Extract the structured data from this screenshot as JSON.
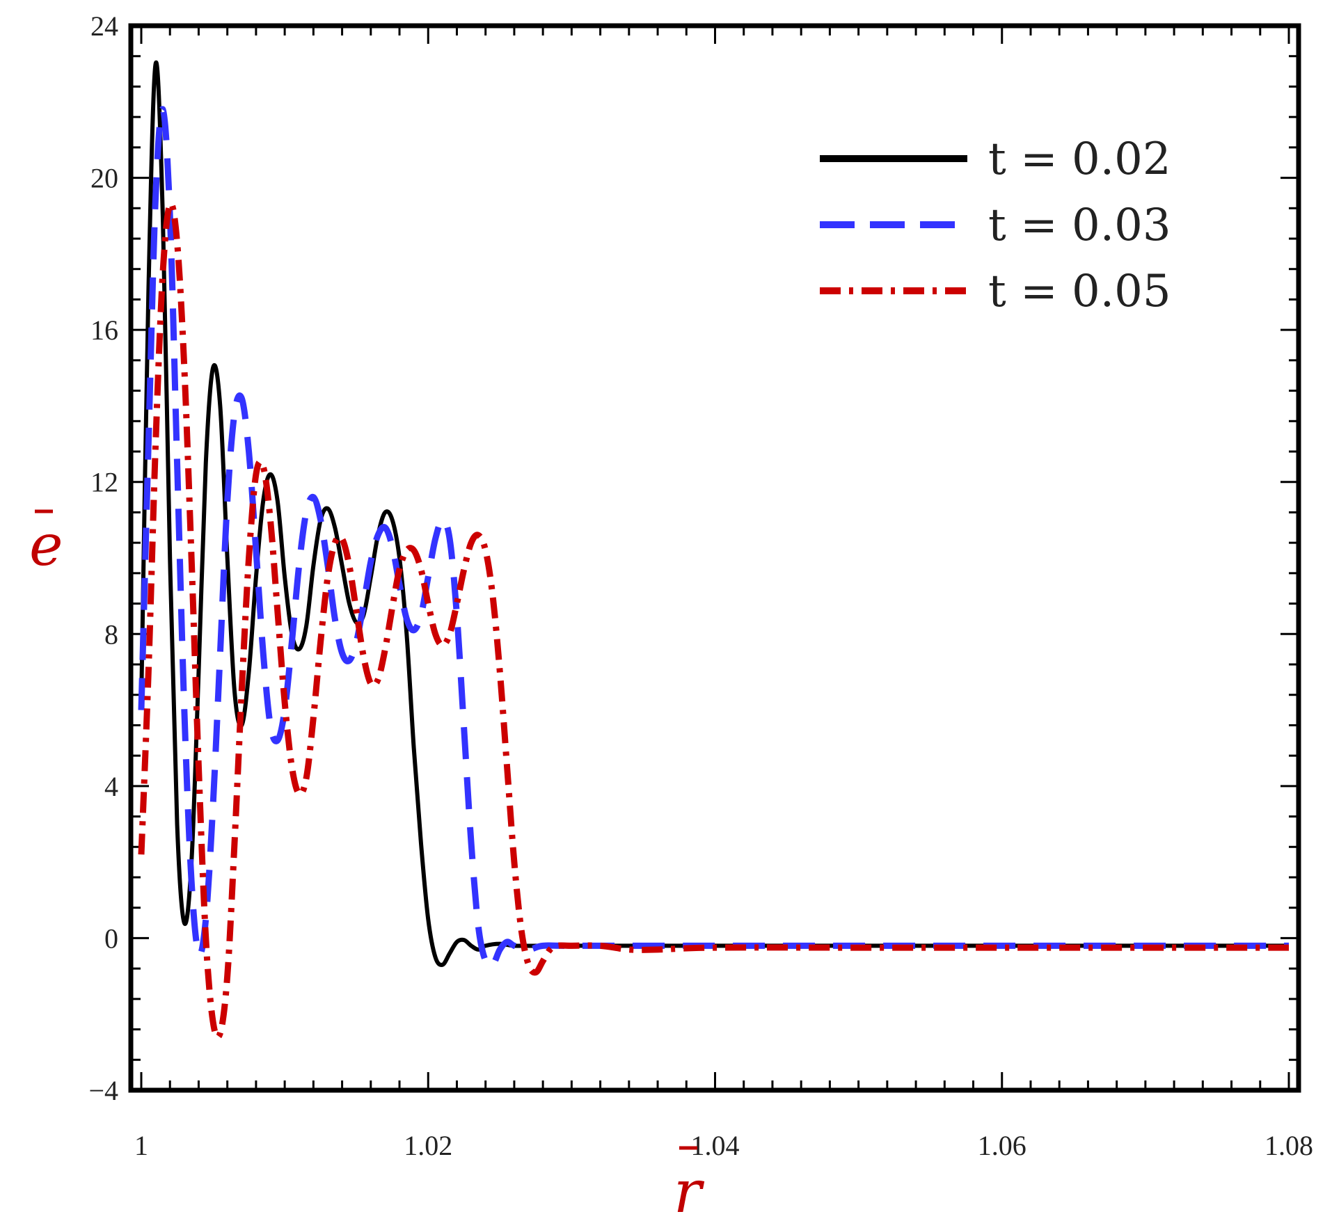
{
  "chart_data": {
    "type": "line",
    "xlabel": "r",
    "ylabel": "e",
    "xlim": [
      1,
      1.08
    ],
    "ylim": [
      -4,
      24
    ],
    "x_ticks": [
      "1",
      "1.02",
      "1.04",
      "1.06",
      "1.08"
    ],
    "x_tick_values": [
      1,
      1.02,
      1.04,
      1.06,
      1.08
    ],
    "y_ticks": [
      "−4",
      "0",
      "4",
      "8",
      "12",
      "16",
      "20",
      "24"
    ],
    "y_tick_values": [
      -4,
      0,
      4,
      8,
      12,
      16,
      20,
      24
    ],
    "grid": false,
    "legend_position": "top-right",
    "axis_label_color": "#c00000",
    "series": [
      {
        "name": "t = 0.02",
        "color": "#000000",
        "style": "solid",
        "points": [
          [
            1.0,
            6.2
          ],
          [
            1.0005,
            17.0
          ],
          [
            1.001,
            23.0
          ],
          [
            1.0015,
            19.0
          ],
          [
            1.002,
            10.0
          ],
          [
            1.0025,
            3.0
          ],
          [
            1.003,
            0.4
          ],
          [
            1.0035,
            2.0
          ],
          [
            1.004,
            7.0
          ],
          [
            1.0045,
            12.5
          ],
          [
            1.005,
            15.0
          ],
          [
            1.0055,
            14.0
          ],
          [
            1.006,
            10.0
          ],
          [
            1.0065,
            6.5
          ],
          [
            1.007,
            5.6
          ],
          [
            1.0075,
            7.0
          ],
          [
            1.008,
            9.5
          ],
          [
            1.0085,
            11.5
          ],
          [
            1.009,
            12.2
          ],
          [
            1.0095,
            11.5
          ],
          [
            1.01,
            9.5
          ],
          [
            1.0105,
            8.0
          ],
          [
            1.011,
            7.6
          ],
          [
            1.0115,
            8.2
          ],
          [
            1.012,
            9.8
          ],
          [
            1.0125,
            11.0
          ],
          [
            1.013,
            11.3
          ],
          [
            1.0135,
            10.8
          ],
          [
            1.014,
            9.8
          ],
          [
            1.0145,
            8.8
          ],
          [
            1.015,
            8.3
          ],
          [
            1.0155,
            8.5
          ],
          [
            1.016,
            9.5
          ],
          [
            1.0165,
            10.6
          ],
          [
            1.017,
            11.2
          ],
          [
            1.0175,
            11.0
          ],
          [
            1.018,
            10.0
          ],
          [
            1.0185,
            8.0
          ],
          [
            1.019,
            5.0
          ],
          [
            1.0195,
            2.5
          ],
          [
            1.02,
            0.5
          ],
          [
            1.0205,
            -0.5
          ],
          [
            1.021,
            -0.7
          ],
          [
            1.0215,
            -0.4
          ],
          [
            1.022,
            -0.1
          ],
          [
            1.0225,
            -0.05
          ],
          [
            1.023,
            -0.2
          ],
          [
            1.0235,
            -0.3
          ],
          [
            1.024,
            -0.2
          ],
          [
            1.025,
            -0.15
          ],
          [
            1.026,
            -0.2
          ],
          [
            1.028,
            -0.2
          ],
          [
            1.03,
            -0.2
          ],
          [
            1.04,
            -0.2
          ],
          [
            1.05,
            -0.2
          ],
          [
            1.06,
            -0.2
          ],
          [
            1.07,
            -0.2
          ],
          [
            1.08,
            -0.2
          ]
        ]
      },
      {
        "name": "t = 0.03",
        "color": "#3333ff",
        "style": "dashed",
        "points": [
          [
            1.0,
            6.0
          ],
          [
            1.0005,
            13.0
          ],
          [
            1.001,
            19.5
          ],
          [
            1.0015,
            21.8
          ],
          [
            1.002,
            19.0
          ],
          [
            1.0025,
            12.5
          ],
          [
            1.003,
            6.0
          ],
          [
            1.0035,
            1.5
          ],
          [
            1.004,
            -0.4
          ],
          [
            1.0045,
            0.5
          ],
          [
            1.005,
            3.5
          ],
          [
            1.0055,
            7.5
          ],
          [
            1.006,
            11.5
          ],
          [
            1.0065,
            13.8
          ],
          [
            1.007,
            14.2
          ],
          [
            1.0075,
            12.8
          ],
          [
            1.008,
            10.2
          ],
          [
            1.0085,
            7.5
          ],
          [
            1.009,
            5.6
          ],
          [
            1.0095,
            5.2
          ],
          [
            1.01,
            6.0
          ],
          [
            1.0105,
            7.8
          ],
          [
            1.011,
            9.8
          ],
          [
            1.0115,
            11.2
          ],
          [
            1.012,
            11.6
          ],
          [
            1.0125,
            11.0
          ],
          [
            1.013,
            9.8
          ],
          [
            1.0135,
            8.4
          ],
          [
            1.014,
            7.5
          ],
          [
            1.0145,
            7.3
          ],
          [
            1.015,
            7.8
          ],
          [
            1.0155,
            8.8
          ],
          [
            1.016,
            9.9
          ],
          [
            1.0165,
            10.6
          ],
          [
            1.017,
            10.8
          ],
          [
            1.0175,
            10.3
          ],
          [
            1.018,
            9.3
          ],
          [
            1.0185,
            8.4
          ],
          [
            1.019,
            8.1
          ],
          [
            1.0195,
            8.5
          ],
          [
            1.02,
            9.5
          ],
          [
            1.0205,
            10.5
          ],
          [
            1.021,
            11.0
          ],
          [
            1.0215,
            10.5
          ],
          [
            1.022,
            8.5
          ],
          [
            1.0225,
            5.5
          ],
          [
            1.023,
            2.5
          ],
          [
            1.0235,
            0.3
          ],
          [
            1.024,
            -0.6
          ],
          [
            1.0245,
            -0.7
          ],
          [
            1.025,
            -0.3
          ],
          [
            1.0255,
            -0.1
          ],
          [
            1.026,
            -0.2
          ],
          [
            1.027,
            -0.3
          ],
          [
            1.028,
            -0.2
          ],
          [
            1.03,
            -0.2
          ],
          [
            1.04,
            -0.2
          ],
          [
            1.05,
            -0.2
          ],
          [
            1.06,
            -0.2
          ],
          [
            1.07,
            -0.2
          ],
          [
            1.08,
            -0.2
          ]
        ]
      },
      {
        "name": "t = 0.05",
        "color": "#cc0000",
        "style": "dash-dot",
        "points": [
          [
            1.0,
            2.2
          ],
          [
            1.0005,
            7.0
          ],
          [
            1.001,
            13.0
          ],
          [
            1.0015,
            17.5
          ],
          [
            1.002,
            19.3
          ],
          [
            1.0025,
            18.3
          ],
          [
            1.003,
            15.0
          ],
          [
            1.0035,
            10.0
          ],
          [
            1.004,
            4.5
          ],
          [
            1.0045,
            0.0
          ],
          [
            1.005,
            -2.2
          ],
          [
            1.0055,
            -2.5
          ],
          [
            1.006,
            -1.0
          ],
          [
            1.0065,
            2.5
          ],
          [
            1.007,
            6.5
          ],
          [
            1.0075,
            10.0
          ],
          [
            1.008,
            12.2
          ],
          [
            1.0085,
            12.4
          ],
          [
            1.009,
            11.0
          ],
          [
            1.0095,
            8.6
          ],
          [
            1.01,
            6.2
          ],
          [
            1.0105,
            4.5
          ],
          [
            1.011,
            3.8
          ],
          [
            1.0115,
            4.2
          ],
          [
            1.012,
            5.8
          ],
          [
            1.0125,
            7.8
          ],
          [
            1.013,
            9.5
          ],
          [
            1.0135,
            10.4
          ],
          [
            1.014,
            10.5
          ],
          [
            1.0145,
            9.8
          ],
          [
            1.015,
            8.6
          ],
          [
            1.0155,
            7.4
          ],
          [
            1.016,
            6.7
          ],
          [
            1.0165,
            6.8
          ],
          [
            1.017,
            7.6
          ],
          [
            1.0175,
            8.7
          ],
          [
            1.018,
            9.7
          ],
          [
            1.0185,
            10.2
          ],
          [
            1.019,
            10.2
          ],
          [
            1.0195,
            9.7
          ],
          [
            1.02,
            8.8
          ],
          [
            1.0205,
            8.0
          ],
          [
            1.021,
            7.7
          ],
          [
            1.0215,
            8.0
          ],
          [
            1.022,
            8.8
          ],
          [
            1.0225,
            9.7
          ],
          [
            1.023,
            10.4
          ],
          [
            1.0235,
            10.6
          ],
          [
            1.024,
            10.2
          ],
          [
            1.0245,
            9.0
          ],
          [
            1.025,
            7.0
          ],
          [
            1.0255,
            4.5
          ],
          [
            1.026,
            2.0
          ],
          [
            1.0265,
            0.2
          ],
          [
            1.027,
            -0.7
          ],
          [
            1.0275,
            -0.9
          ],
          [
            1.028,
            -0.6
          ],
          [
            1.0285,
            -0.3
          ],
          [
            1.029,
            -0.2
          ],
          [
            1.03,
            -0.2
          ],
          [
            1.032,
            -0.2
          ],
          [
            1.034,
            -0.3
          ],
          [
            1.036,
            -0.3
          ],
          [
            1.04,
            -0.25
          ],
          [
            1.05,
            -0.25
          ],
          [
            1.06,
            -0.25
          ],
          [
            1.07,
            -0.25
          ],
          [
            1.08,
            -0.25
          ]
        ]
      }
    ]
  }
}
